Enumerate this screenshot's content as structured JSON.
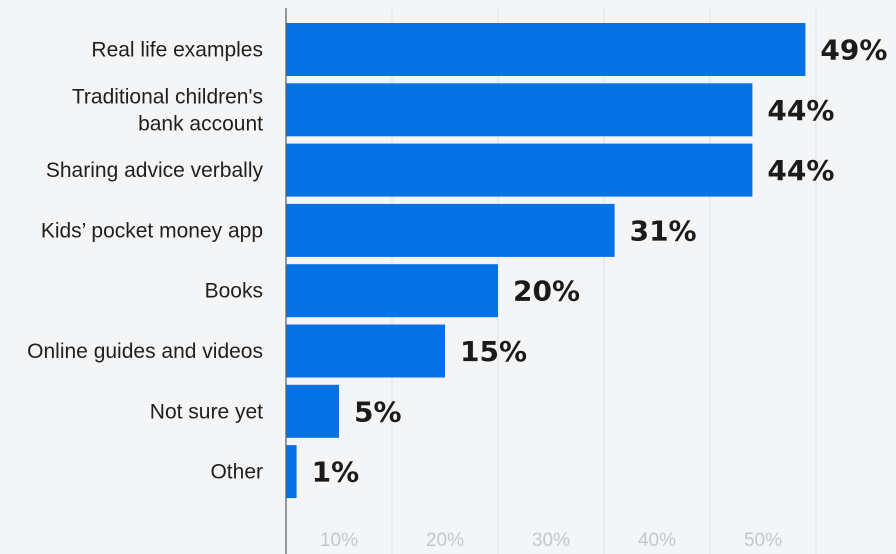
{
  "chart_data": {
    "type": "bar",
    "orientation": "horizontal",
    "categories": [
      "Real life examples",
      "Traditional children's bank account",
      "Sharing advice verbally",
      "Kids’ pocket money app",
      "Books",
      "Online guides and videos",
      "Not sure yet",
      "Other"
    ],
    "category_lines": [
      [
        "Real life examples"
      ],
      [
        "Traditional children's",
        "bank account"
      ],
      [
        "Sharing advice verbally"
      ],
      [
        "Kids’ pocket money app"
      ],
      [
        "Books"
      ],
      [
        "Online guides and videos"
      ],
      [
        "Not sure yet"
      ],
      [
        "Other"
      ]
    ],
    "values": [
      49,
      44,
      44,
      31,
      20,
      15,
      5,
      1
    ],
    "value_labels": [
      "49%",
      "44%",
      "44%",
      "31%",
      "20%",
      "15%",
      "5%",
      "1%"
    ],
    "x_ticks": [
      10,
      20,
      30,
      40,
      50
    ],
    "x_tick_labels": [
      "10%",
      "20%",
      "30%",
      "40%",
      "50%"
    ],
    "xlim": [
      0,
      50
    ],
    "grid": true,
    "legend": "none",
    "colors": {
      "bar": "#0772e4",
      "background": "#f4f5f7",
      "grid": "#dcdee2",
      "axis": "#555a60",
      "value_text": "#1b1b1b",
      "category_text": "#1f1f1f",
      "tick_text": "#c3c7cc"
    }
  }
}
